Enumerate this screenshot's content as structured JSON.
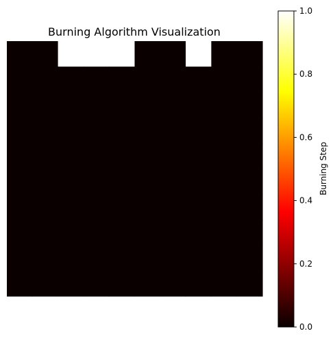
{
  "chart_data": {
    "type": "heatmap",
    "title": "Burning Algorithm Visualization",
    "colormap": "hot",
    "grid_rows": 10,
    "grid_cols": 10,
    "vmin": 0,
    "vmax": 1,
    "values": [
      [
        0,
        0,
        1,
        1,
        1,
        0,
        0,
        1,
        0,
        0
      ],
      [
        0,
        0,
        0,
        0,
        0,
        0,
        0,
        0,
        0,
        0
      ],
      [
        0,
        0,
        0,
        0,
        0,
        0,
        0,
        0,
        0,
        0
      ],
      [
        0,
        0,
        0,
        0,
        0,
        0,
        0,
        0,
        0,
        0
      ],
      [
        0,
        0,
        0,
        0,
        0,
        0,
        0,
        0,
        0,
        0
      ],
      [
        0,
        0,
        0,
        0,
        0,
        0,
        0,
        0,
        0,
        0
      ],
      [
        0,
        0,
        0,
        0,
        0,
        0,
        0,
        0,
        0,
        0
      ],
      [
        0,
        0,
        0,
        0,
        0,
        0,
        0,
        0,
        0,
        0
      ],
      [
        0,
        0,
        0,
        0,
        0,
        0,
        0,
        0,
        0,
        0
      ],
      [
        0,
        0,
        0,
        0,
        0,
        0,
        0,
        0,
        0,
        0
      ]
    ],
    "axes_visible": false,
    "colorbar": {
      "label": "Burning Step",
      "ticks": [
        0.0,
        0.2,
        0.4,
        0.6,
        0.8,
        1.0
      ],
      "tick_labels": [
        "0.0",
        "0.2",
        "0.4",
        "0.6",
        "0.8",
        "1.0"
      ]
    }
  }
}
